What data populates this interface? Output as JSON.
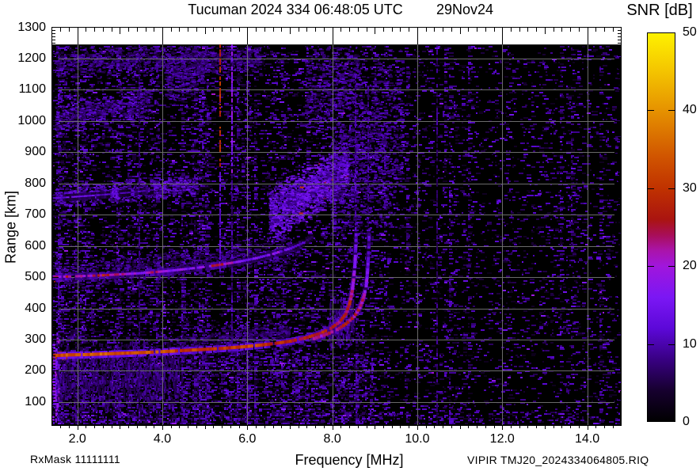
{
  "header": {
    "title": "Tucuman 2024 334 06:48:05 UTC",
    "date_label": "29Nov24",
    "colorbar_title": "SNR [dB]"
  },
  "footer": {
    "rx_mask": "RxMask 11111111",
    "xlabel": "Frequency [MHz]",
    "file_label": "VIPIR  TMJ20_2024334064805.RIQ"
  },
  "chart_data": {
    "type": "heatmap",
    "kind": "ionogram",
    "title": "Tucuman 2024 334 06:48:05 UTC",
    "date": "29Nov24",
    "xlabel": "Frequency [MHz]",
    "ylabel": "Range [km]",
    "xlim": [
      1.4,
      14.8
    ],
    "ylim": [
      25,
      1300
    ],
    "data_max_range_km": 1245,
    "grid": true,
    "grid_color": "#707070",
    "background": "#000000",
    "x_minor_step": 0.2,
    "y_minor_step": 10,
    "x_ticks": [
      {
        "v": 2,
        "label": "2.0"
      },
      {
        "v": 4,
        "label": "4.0"
      },
      {
        "v": 6,
        "label": "6.0"
      },
      {
        "v": 8,
        "label": "8.0"
      },
      {
        "v": 10,
        "label": "10.0"
      },
      {
        "v": 12,
        "label": "12.0"
      },
      {
        "v": 14,
        "label": "14.0"
      }
    ],
    "y_ticks": [
      {
        "v": 100,
        "label": "100"
      },
      {
        "v": 200,
        "label": "200"
      },
      {
        "v": 300,
        "label": "300"
      },
      {
        "v": 400,
        "label": "400"
      },
      {
        "v": 500,
        "label": "500"
      },
      {
        "v": 600,
        "label": "600"
      },
      {
        "v": 700,
        "label": "700"
      },
      {
        "v": 800,
        "label": "800"
      },
      {
        "v": 900,
        "label": "900"
      },
      {
        "v": 1000,
        "label": "1000"
      },
      {
        "v": 1100,
        "label": "1100"
      },
      {
        "v": 1200,
        "label": "1200"
      },
      {
        "v": 1300,
        "label": "1300"
      }
    ],
    "colorbar": {
      "title": "SNR [dB]",
      "min": 0,
      "max": 50,
      "ticks": [
        {
          "v": 0,
          "label": "0"
        },
        {
          "v": 10,
          "label": "10"
        },
        {
          "v": 20,
          "label": "20"
        },
        {
          "v": 30,
          "label": "30"
        },
        {
          "v": 40,
          "label": "40"
        },
        {
          "v": 50,
          "label": "50"
        }
      ],
      "stops": [
        [
          0,
          "#000000"
        ],
        [
          4,
          "#16002e"
        ],
        [
          8,
          "#380082"
        ],
        [
          12,
          "#5c08d8"
        ],
        [
          16,
          "#7b17f4"
        ],
        [
          20,
          "#a016dc"
        ],
        [
          22,
          "#aa14aa"
        ],
        [
          24,
          "#a80e58"
        ],
        [
          26,
          "#aa1410"
        ],
        [
          30,
          "#c03200"
        ],
        [
          34,
          "#d05400"
        ],
        [
          40,
          "#e69200"
        ],
        [
          45,
          "#f4c400"
        ],
        [
          50,
          "#fef200"
        ]
      ]
    },
    "traces": [
      {
        "name": "F-region 1st hop O-mode",
        "w": 4,
        "gap": 0.05,
        "jit": 7,
        "points": [
          [
            1.45,
            249,
            32
          ],
          [
            1.8,
            251,
            35
          ],
          [
            2.2,
            252,
            33
          ],
          [
            2.6,
            254,
            35
          ],
          [
            3.0,
            256,
            33
          ],
          [
            3.4,
            258,
            34
          ],
          [
            3.8,
            260,
            32
          ],
          [
            4.2,
            263,
            33
          ],
          [
            4.6,
            266,
            30
          ],
          [
            5.0,
            269,
            31
          ],
          [
            5.4,
            272,
            29
          ],
          [
            5.8,
            276,
            31
          ],
          [
            6.2,
            281,
            32
          ],
          [
            6.6,
            287,
            29
          ],
          [
            7.0,
            295,
            27
          ],
          [
            7.4,
            307,
            27
          ],
          [
            7.7,
            320,
            28
          ],
          [
            7.95,
            336,
            27
          ],
          [
            8.15,
            356,
            26
          ],
          [
            8.3,
            382,
            26
          ],
          [
            8.39,
            415,
            26
          ],
          [
            8.45,
            455,
            23
          ],
          [
            8.49,
            500,
            19
          ],
          [
            8.52,
            550,
            15
          ],
          [
            8.535,
            600,
            12
          ],
          [
            8.545,
            645,
            10
          ]
        ]
      },
      {
        "name": "F-region 1st hop X-mode",
        "w": 4,
        "gap": 0.07,
        "jit": 7,
        "points": [
          [
            7.55,
            303,
            21
          ],
          [
            7.85,
            317,
            23
          ],
          [
            8.1,
            332,
            24
          ],
          [
            8.3,
            350,
            25
          ],
          [
            8.5,
            374,
            25
          ],
          [
            8.63,
            402,
            24
          ],
          [
            8.72,
            435,
            22
          ],
          [
            8.78,
            472,
            19
          ],
          [
            8.81,
            515,
            15
          ],
          [
            8.83,
            560,
            12
          ],
          [
            8.845,
            605,
            10
          ],
          [
            8.85,
            645,
            9
          ]
        ]
      },
      {
        "name": "F-region 2nd hop",
        "w": 3,
        "gap": 0.14,
        "jit": 9,
        "points": [
          [
            1.45,
            501,
            20
          ],
          [
            1.8,
            502,
            25
          ],
          [
            2.2,
            504,
            19
          ],
          [
            2.6,
            506,
            27
          ],
          [
            3.0,
            509,
            21
          ],
          [
            3.4,
            512,
            17
          ],
          [
            3.8,
            516,
            23
          ],
          [
            4.2,
            521,
            19
          ],
          [
            4.6,
            527,
            15
          ],
          [
            5.0,
            533,
            21
          ],
          [
            5.4,
            541,
            24
          ],
          [
            5.8,
            550,
            16
          ],
          [
            6.2,
            561,
            14
          ],
          [
            6.6,
            575,
            18
          ],
          [
            7.0,
            592,
            13
          ],
          [
            7.3,
            610,
            11
          ],
          [
            7.55,
            632,
            9
          ]
        ]
      },
      {
        "name": "F-region 3rd hop",
        "w": 2,
        "gap": 0.18,
        "jit": 5,
        "points": [
          [
            1.45,
            753,
            12
          ],
          [
            2.0,
            758,
            14
          ],
          [
            2.6,
            764,
            12
          ],
          [
            3.2,
            771,
            10
          ],
          [
            3.8,
            780,
            9
          ]
        ]
      }
    ],
    "rfi_lines": [
      {
        "f": 5.35,
        "km0": 845,
        "km1": 1245,
        "snr": 29
      },
      {
        "f": 5.35,
        "km0": 520,
        "km1": 845,
        "snr": 13
      },
      {
        "f": 5.62,
        "km0": 830,
        "km1": 1245,
        "snr": 17
      },
      {
        "f": 5.62,
        "km0": 260,
        "km1": 830,
        "snr": 9
      },
      {
        "f": 3.45,
        "km0": 60,
        "km1": 1245,
        "snr": 7
      },
      {
        "f": 8.53,
        "km0": 660,
        "km1": 1150,
        "snr": 9
      },
      {
        "f": 8.82,
        "km0": 660,
        "km1": 1120,
        "snr": 8
      },
      {
        "f": 10.45,
        "km0": 40,
        "km1": 1245,
        "snr": 7
      }
    ],
    "diffuse": [
      {
        "name": "first-hop-start-blob",
        "f0": 1.42,
        "f1": 1.78,
        "km0": 250,
        "km1": 250,
        "spread": 14,
        "n": 90,
        "snr": [
          24,
          38
        ]
      },
      {
        "name": "left-edge-column",
        "f0": 1.41,
        "f1": 1.55,
        "km0": 170,
        "km1": 170,
        "spread": 160,
        "n": 160,
        "snr": [
          8,
          22
        ],
        "vert": true
      },
      {
        "name": "below-trace-range-spread",
        "f0": 1.5,
        "f1": 4.4,
        "km0": 185,
        "km1": 195,
        "spread": 120,
        "n": 900,
        "snr": [
          4,
          10
        ],
        "vert": true
      },
      {
        "name": "second-hop-fuzz",
        "f0": 1.45,
        "f1": 7.2,
        "km0": 505,
        "km1": 590,
        "spread": 55,
        "n": 700,
        "snr": [
          4,
          11
        ]
      },
      {
        "name": "second-hop-start-blob",
        "f0": 1.42,
        "f1": 1.7,
        "km0": 500,
        "km1": 502,
        "spread": 12,
        "n": 60,
        "snr": [
          14,
          26
        ]
      },
      {
        "name": "third-hop-left",
        "f0": 1.45,
        "f1": 4.8,
        "km0": 757,
        "km1": 798,
        "spread": 38,
        "n": 650,
        "snr": [
          6,
          15
        ]
      },
      {
        "name": "third-hop-wedge",
        "f0": 6.5,
        "f1": 8.35,
        "km0": 700,
        "km1": 845,
        "spread": 95,
        "n": 1500,
        "snr": [
          7,
          17
        ],
        "hot": 0.008
      },
      {
        "name": "spread-cloud-above-cusp",
        "f0": 7.95,
        "f1": 9.65,
        "km0": 840,
        "km1": 960,
        "spread": 330,
        "n": 1100,
        "snr": [
          5,
          12
        ]
      },
      {
        "name": "top-spread-patch",
        "f0": 7.35,
        "f1": 8.6,
        "km0": 1080,
        "km1": 1160,
        "spread": 150,
        "n": 420,
        "snr": [
          5,
          12
        ]
      },
      {
        "name": "fourth-hop-left",
        "f0": 1.45,
        "f1": 3.7,
        "km0": 1012,
        "km1": 1058,
        "spread": 55,
        "n": 520,
        "snr": [
          5,
          13
        ]
      },
      {
        "name": "fourth-hop-mid-patch",
        "f0": 4.05,
        "f1": 4.95,
        "km0": 1130,
        "km1": 1165,
        "spread": 80,
        "n": 260,
        "snr": [
          5,
          12
        ]
      },
      {
        "name": "under-cusp-vertical-spread",
        "f0": 7.9,
        "f1": 8.5,
        "km0": 350,
        "km1": 380,
        "spread": 90,
        "n": 220,
        "snr": [
          5,
          11
        ],
        "vert": true
      },
      {
        "name": "near-top-dense-band",
        "f0": 1.45,
        "f1": 6.3,
        "km0": 1190,
        "km1": 1200,
        "spread": 55,
        "n": 900,
        "snr": [
          4,
          11
        ]
      },
      {
        "name": "fuzz-above-first-hop",
        "f0": 4.3,
        "f1": 7.0,
        "km0": 280,
        "km1": 330,
        "spread": 45,
        "n": 450,
        "snr": [
          4,
          10
        ]
      }
    ],
    "noise": {
      "seed": 1334,
      "snr": [
        2,
        12
      ],
      "base_density": 0.155,
      "hf_density": 0.105,
      "vhf_density": 0.08
    }
  }
}
